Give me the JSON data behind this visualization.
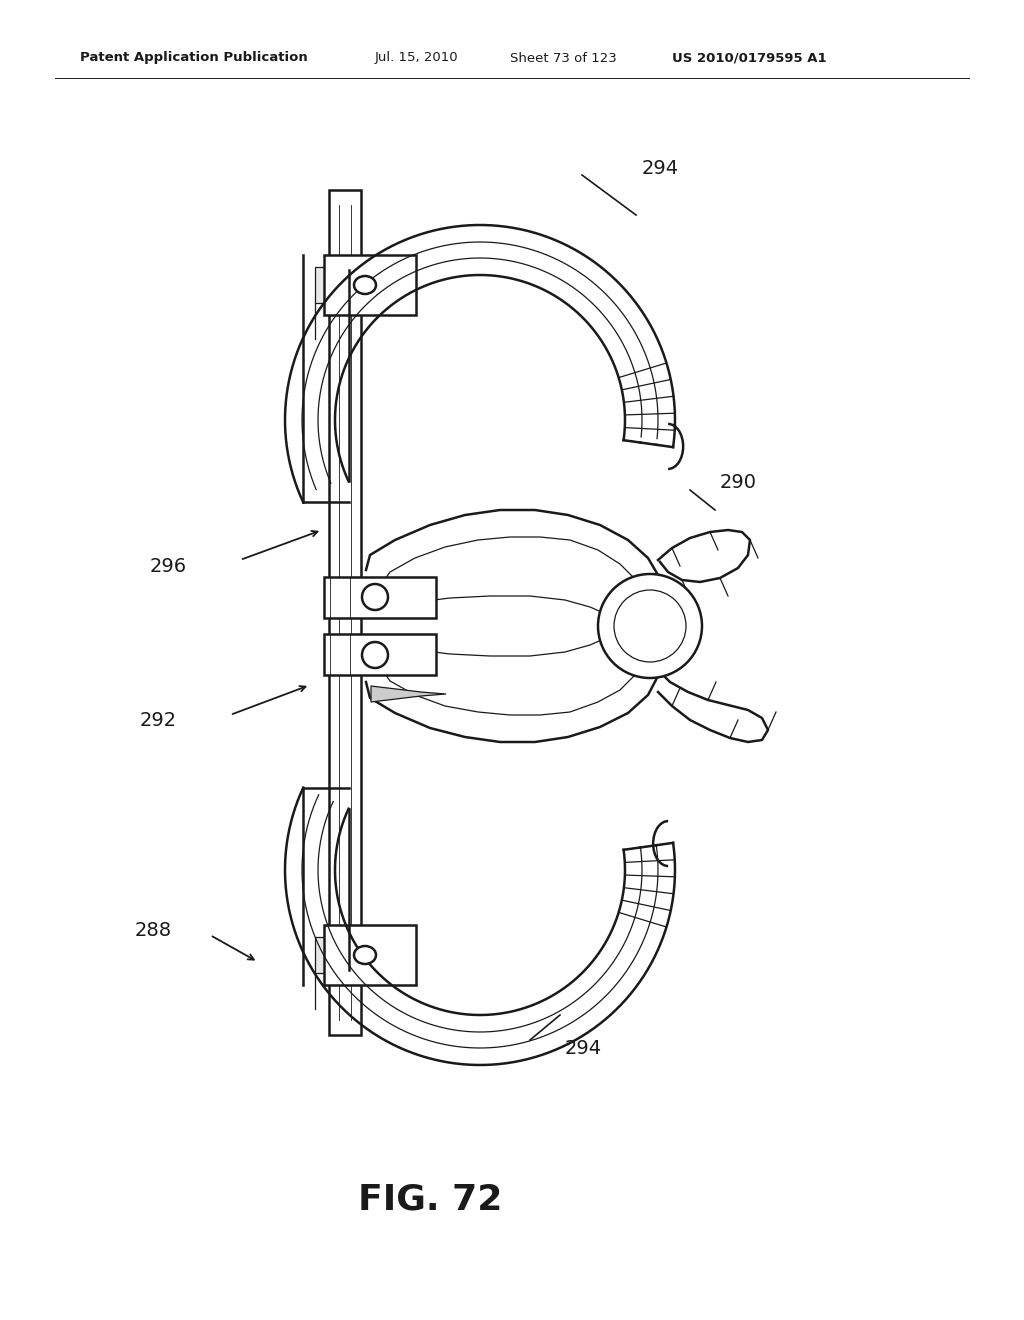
{
  "background_color": "#ffffff",
  "header_left": "Patent Application Publication",
  "header_date": "Jul. 15, 2010",
  "header_sheet": "Sheet 73 of 123",
  "header_patent": "US 2010/0179595 A1",
  "figure_label": "FIG. 72",
  "line_color": "#1a1a1a",
  "lw_main": 1.8,
  "lw_thin": 0.9,
  "lw_hair": 0.6
}
